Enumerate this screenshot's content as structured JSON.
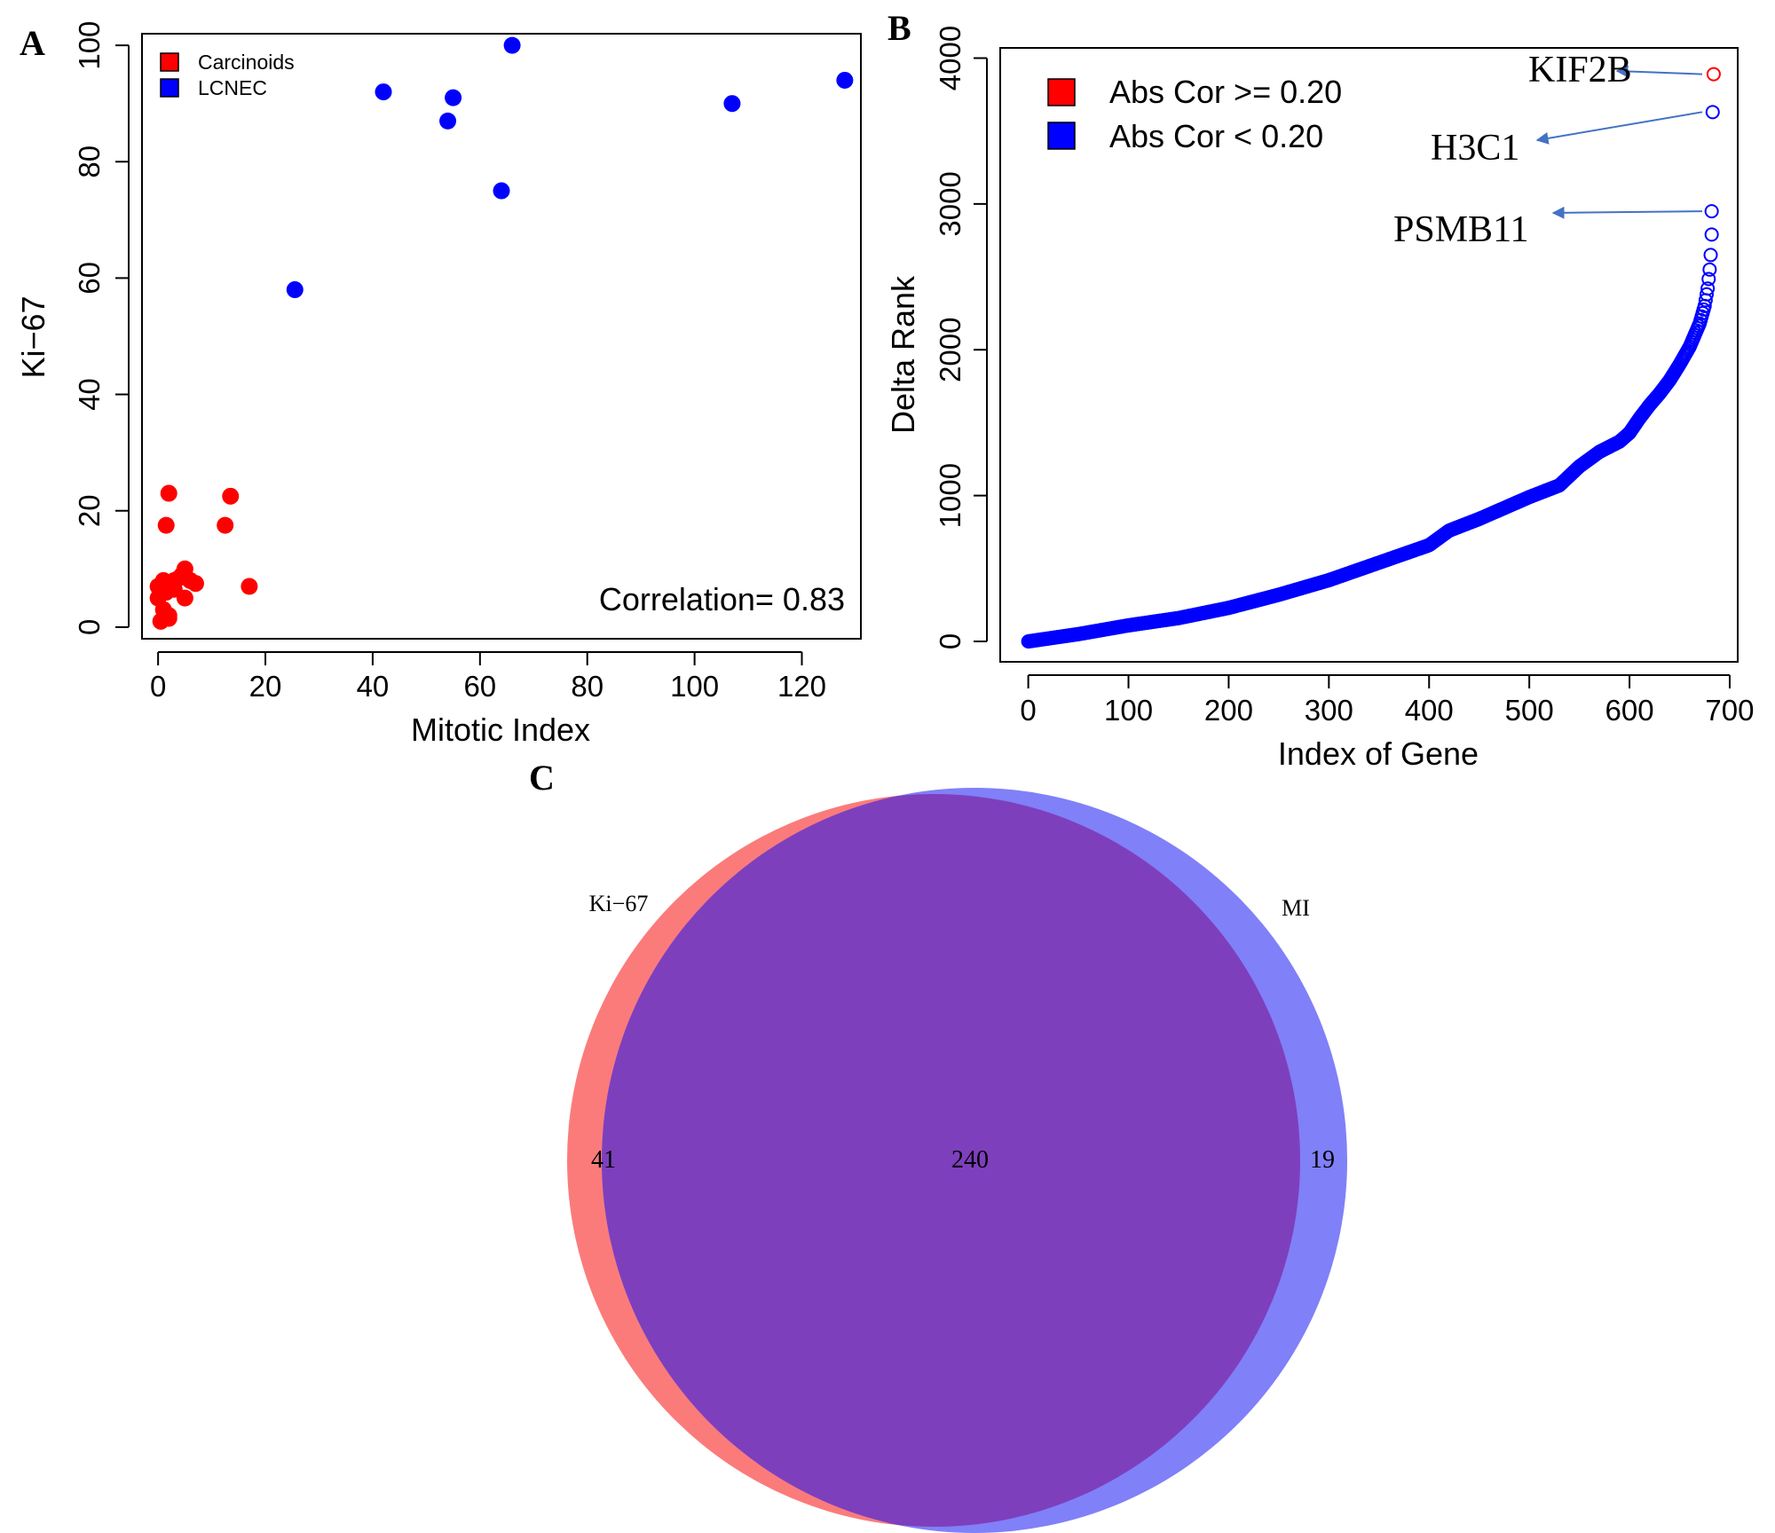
{
  "panels": {
    "a": "A",
    "b": "B",
    "c": "C"
  },
  "chart_data": [
    {
      "type": "scatter",
      "xlabel": "Mitotic Index",
      "ylabel": "Ki−67",
      "xlim": [
        -3,
        131
      ],
      "ylim": [
        -2,
        102
      ],
      "xticks": [
        0,
        20,
        40,
        60,
        80,
        100,
        120
      ],
      "yticks": [
        0,
        20,
        40,
        60,
        80,
        100
      ],
      "legend_position": "top-left",
      "annotation": "Correlation= 0.83",
      "series": [
        {
          "name": "Carcinoids",
          "color": "#ff0000",
          "points": [
            [
              0,
              7
            ],
            [
              0,
              5
            ],
            [
              0.5,
              1
            ],
            [
              1,
              8
            ],
            [
              1,
              3
            ],
            [
              1.5,
              6
            ],
            [
              2,
              2
            ],
            [
              2,
              1.5
            ],
            [
              2.5,
              7.5
            ],
            [
              3,
              6.5
            ],
            [
              3,
              8
            ],
            [
              4,
              8.5
            ],
            [
              4.5,
              9
            ],
            [
              5,
              10
            ],
            [
              5,
              5
            ],
            [
              6,
              8
            ],
            [
              7,
              7.5
            ],
            [
              1.5,
              17.5
            ],
            [
              2,
              23
            ],
            [
              12.5,
              17.5
            ],
            [
              13.5,
              22.5
            ],
            [
              17,
              7
            ]
          ]
        },
        {
          "name": "LCNEC",
          "color": "#0000ff",
          "points": [
            [
              25.5,
              58
            ],
            [
              42,
              92
            ],
            [
              54,
              87
            ],
            [
              55,
              91
            ],
            [
              64,
              75
            ],
            [
              66,
              100
            ],
            [
              107,
              90
            ],
            [
              128,
              94
            ]
          ]
        }
      ]
    },
    {
      "type": "scatter",
      "xlabel": "Index of Gene",
      "ylabel": "Delta Rank",
      "xlim": [
        -28,
        708
      ],
      "ylim": [
        -140,
        4070
      ],
      "xticks": [
        0,
        100,
        200,
        300,
        400,
        500,
        600,
        700
      ],
      "yticks": [
        0,
        1000,
        2000,
        3000,
        4000
      ],
      "legend_position": "top-left",
      "series": [
        {
          "name": "Abs Cor >= 0.20",
          "color": "#ff0000"
        },
        {
          "name": "Abs Cor < 0.20",
          "color": "#0000ff"
        }
      ],
      "curve_points": [
        [
          0,
          0
        ],
        [
          50,
          50
        ],
        [
          100,
          110
        ],
        [
          150,
          160
        ],
        [
          200,
          230
        ],
        [
          250,
          320
        ],
        [
          300,
          420
        ],
        [
          350,
          540
        ],
        [
          400,
          660
        ],
        [
          420,
          760
        ],
        [
          450,
          840
        ],
        [
          500,
          990
        ],
        [
          530,
          1070
        ],
        [
          550,
          1200
        ],
        [
          570,
          1300
        ],
        [
          590,
          1370
        ],
        [
          600,
          1430
        ],
        [
          610,
          1530
        ],
        [
          620,
          1620
        ],
        [
          630,
          1700
        ],
        [
          640,
          1790
        ],
        [
          650,
          1900
        ],
        [
          660,
          2020
        ],
        [
          670,
          2180
        ],
        [
          675,
          2300
        ],
        [
          678,
          2420
        ],
        [
          680,
          2550
        ],
        [
          681,
          2650
        ]
      ],
      "outliers": [
        [
          682,
          2790
        ],
        [
          682,
          2950
        ],
        [
          683,
          3630
        ],
        [
          684,
          3890
        ]
      ],
      "labeled_genes": [
        {
          "label": "KIF2B",
          "x": 684,
          "y": 3890,
          "color": "#ff0000"
        },
        {
          "label": "H3C1",
          "x": 683,
          "y": 3630,
          "color": "#0000ff"
        },
        {
          "label": "PSMB11",
          "x": 682,
          "y": 2950,
          "color": "#0000ff"
        }
      ]
    },
    {
      "type": "venn",
      "sets": [
        {
          "name": "Ki−67",
          "color": "#fb7b7b",
          "only": 41
        },
        {
          "name": "MI",
          "color": "#8080f8",
          "only": 19
        }
      ],
      "overlap": 240,
      "overlap_color": "#7e3fbd"
    }
  ]
}
